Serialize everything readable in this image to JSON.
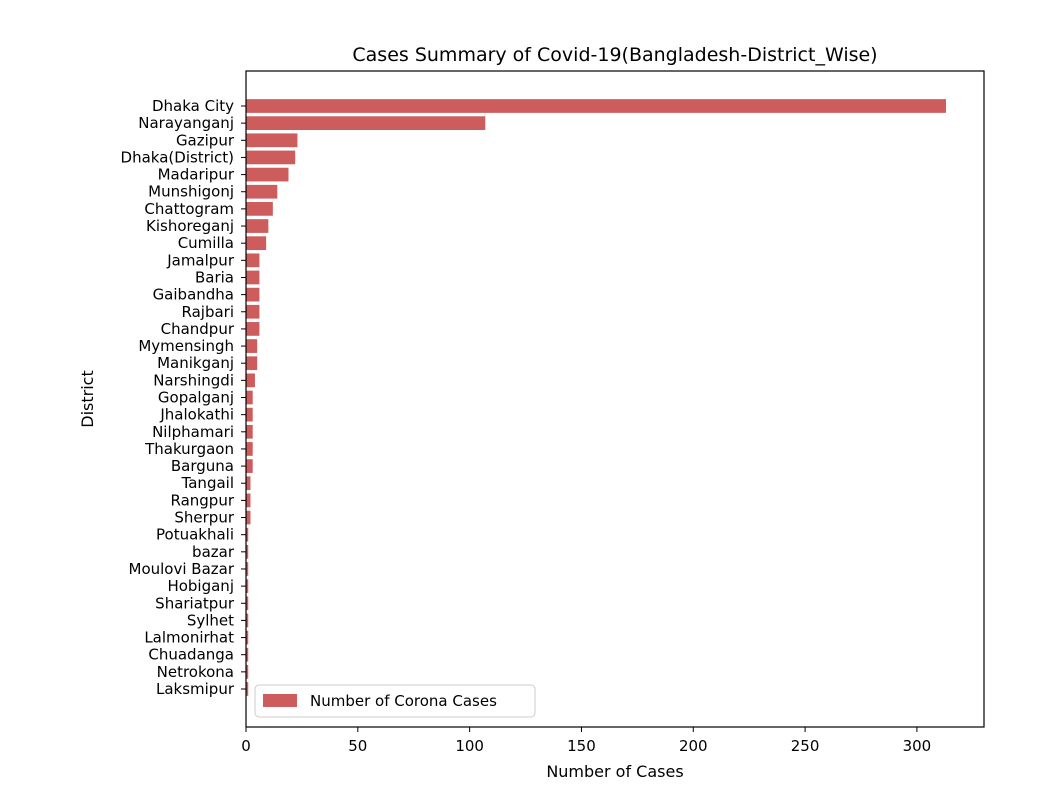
{
  "chart_data": {
    "type": "bar",
    "orientation": "horizontal",
    "title": "Cases Summary of Covid-19(Bangladesh-District_Wise)",
    "xlabel": "Number of Cases",
    "ylabel": "District",
    "xlim": [
      0,
      330
    ],
    "xticks": [
      0,
      50,
      100,
      150,
      200,
      250,
      300
    ],
    "grid": false,
    "legend_position": "bottom-left",
    "bar_color": "#cd5c5c",
    "categories": [
      "Dhaka City",
      "Narayanganj",
      "Gazipur",
      "Dhaka(District)",
      "Madaripur",
      "Munshigonj",
      "Chattogram",
      "Kishoreganj",
      "Cumilla",
      "Jamalpur",
      "Baria",
      "Gaibandha",
      "Rajbari",
      "Chandpur",
      "Mymensingh",
      "Manikganj",
      "Narshingdi",
      "Gopalganj",
      "Jhalokathi",
      "Nilphamari",
      "Thakurgaon",
      "Barguna",
      "Tangail",
      "Rangpur",
      "Sherpur",
      "Potuakhali",
      "bazar",
      "Moulovi Bazar",
      "Hobiganj",
      "Shariatpur",
      "Sylhet",
      "Lalmonirhat",
      "Chuadanga",
      "Netrokona",
      "Laksmipur"
    ],
    "series": [
      {
        "name": "Number of Corona Cases",
        "values": [
          313,
          107,
          23,
          22,
          19,
          14,
          12,
          10,
          9,
          6,
          6,
          6,
          6,
          6,
          5,
          5,
          4,
          3,
          3,
          3,
          3,
          3,
          2,
          2,
          2,
          1,
          1,
          1,
          1,
          1,
          1,
          1,
          1,
          1,
          1
        ]
      }
    ]
  }
}
